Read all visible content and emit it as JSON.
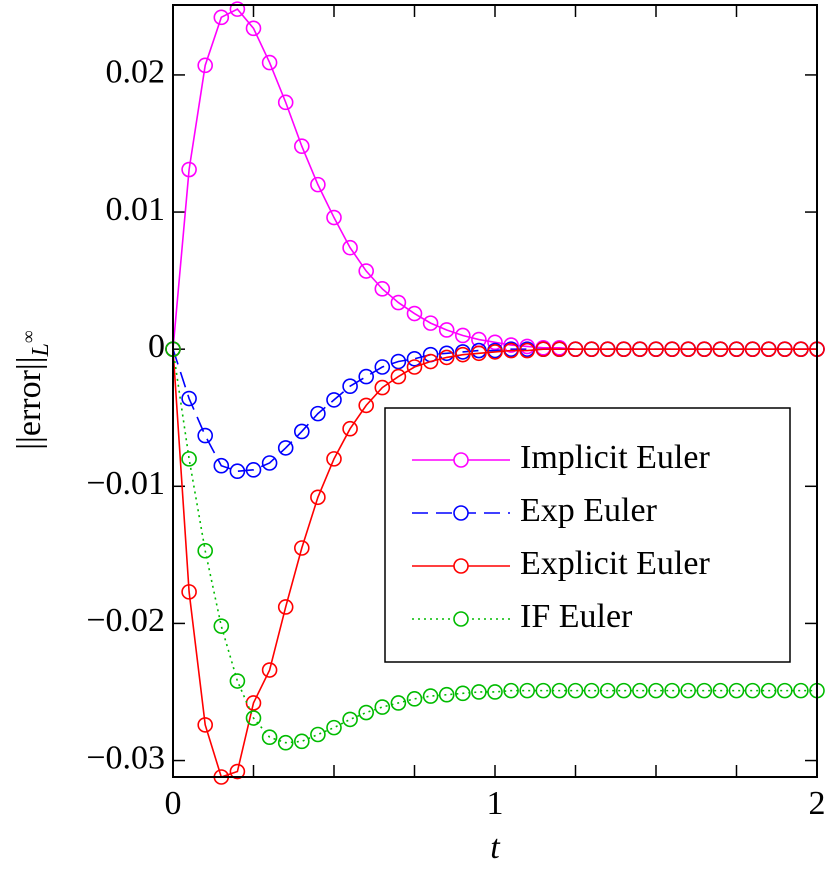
{
  "chart_data": {
    "type": "line",
    "xlabel": "t",
    "ylabel": {
      "text": "||error||",
      "subscript": "L",
      "superscript": "∞"
    },
    "x": [
      0,
      0.05,
      0.1,
      0.15,
      0.2,
      0.25,
      0.3,
      0.35,
      0.4,
      0.45,
      0.5,
      0.55,
      0.6,
      0.65,
      0.7,
      0.75,
      0.8,
      0.85,
      0.9,
      0.95,
      1,
      1.05,
      1.1,
      1.15,
      1.2,
      1.25,
      1.3,
      1.35,
      1.4,
      1.45,
      1.5,
      1.55,
      1.6,
      1.65,
      1.7,
      1.75,
      1.8,
      1.85,
      1.9,
      1.95,
      2
    ],
    "series": [
      {
        "name": "Implicit Euler",
        "color": "#ff00ff",
        "dash": "solid",
        "values": [
          0,
          0.0131,
          0.0207,
          0.0242,
          0.0248,
          0.0234,
          0.0209,
          0.018,
          0.0148,
          0.012,
          0.0096,
          0.0074,
          0.0057,
          0.0044,
          0.0034,
          0.0026,
          0.0019,
          0.0014,
          0.001,
          0.0007,
          0.0005,
          0.0003,
          0.0002,
          0.0001,
          0.0001,
          0,
          0,
          0,
          0,
          0,
          0,
          0,
          0,
          0,
          0,
          0,
          0,
          0,
          0,
          0,
          0
        ]
      },
      {
        "name": "Exp Euler",
        "color": "#0000ff",
        "dash": "dashed",
        "values": [
          0,
          -0.0036,
          -0.0063,
          -0.0085,
          -0.0089,
          -0.0088,
          -0.0083,
          -0.0072,
          -0.006,
          -0.0047,
          -0.0037,
          -0.0027,
          -0.002,
          -0.0013,
          -0.0009,
          -0.0007,
          -0.0004,
          -0.0003,
          -0.0002,
          -0.0001,
          -0.0001,
          0,
          0,
          0,
          0,
          0,
          0,
          0,
          0,
          0,
          0,
          0,
          0,
          0,
          0,
          0,
          0,
          0,
          0,
          0,
          0
        ]
      },
      {
        "name": "Explicit Euler",
        "color": "#ff0000",
        "dash": "solid",
        "values": [
          0,
          -0.0177,
          -0.0274,
          -0.0312,
          -0.0308,
          -0.0258,
          -0.0234,
          -0.0188,
          -0.0145,
          -0.0108,
          -0.008,
          -0.0058,
          -0.0041,
          -0.0028,
          -0.002,
          -0.0013,
          -0.0009,
          -0.0006,
          -0.0004,
          -0.0003,
          -0.0002,
          -0.0001,
          -0.0001,
          0,
          0,
          0,
          0,
          0,
          0,
          0,
          0,
          0,
          0,
          0,
          0,
          0,
          0,
          0,
          0,
          0,
          0
        ]
      },
      {
        "name": "IF Euler",
        "color": "#00bb00",
        "dash": "dotted",
        "values": [
          0,
          -0.008,
          -0.0147,
          -0.0202,
          -0.0242,
          -0.0269,
          -0.0283,
          -0.0287,
          -0.0286,
          -0.0281,
          -0.0276,
          -0.027,
          -0.0265,
          -0.0261,
          -0.0258,
          -0.0255,
          -0.0253,
          -0.0252,
          -0.0251,
          -0.025,
          -0.025,
          -0.0249,
          -0.0249,
          -0.0249,
          -0.0249,
          -0.0249,
          -0.0249,
          -0.0249,
          -0.0249,
          -0.0249,
          -0.0249,
          -0.0249,
          -0.0249,
          -0.0249,
          -0.0249,
          -0.0249,
          -0.0249,
          -0.0249,
          -0.0249,
          -0.0249,
          -0.0249
        ]
      }
    ],
    "xlim": [
      0,
      2
    ],
    "xticks": [
      0,
      1,
      2
    ],
    "xminorticks": [
      0.25,
      0.5,
      0.75,
      1.25,
      1.5,
      1.75
    ],
    "ylim": [
      -0.0312,
      0.0251
    ],
    "yticks": [
      {
        "value": -0.03,
        "label": "−0.03"
      },
      {
        "value": -0.02,
        "label": "−0.02"
      },
      {
        "value": -0.01,
        "label": "−0.01"
      },
      0,
      0.01,
      0.02
    ],
    "legend": "center right",
    "grid": false,
    "markers": "open-circle"
  }
}
